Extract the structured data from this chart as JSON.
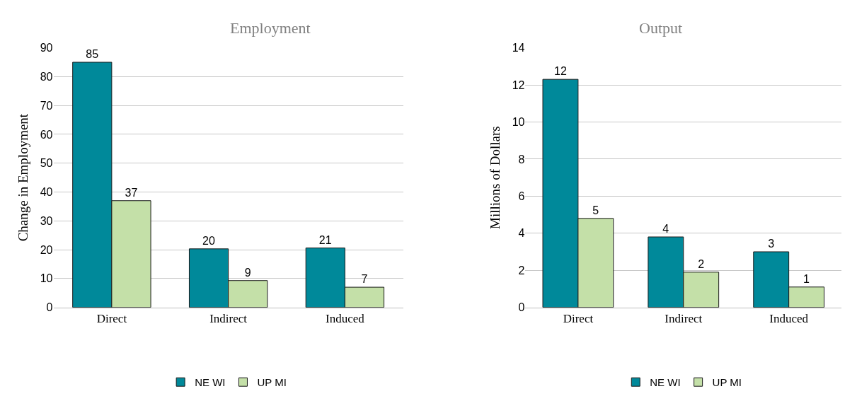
{
  "chart_data": [
    {
      "type": "bar",
      "title": "Employment",
      "ylabel": "Change in Employment",
      "categories": [
        "Direct",
        "Indirect",
        "Induced"
      ],
      "series": [
        {
          "name": "NE WI",
          "color": "#00899a",
          "values": [
            85,
            20.3,
            20.6
          ],
          "value_labels": [
            "85",
            "20",
            "21"
          ]
        },
        {
          "name": "UP MI",
          "color": "#c4e0a8",
          "values": [
            37,
            9.3,
            7
          ],
          "value_labels": [
            "37",
            "9",
            "7"
          ]
        }
      ],
      "ylim": [
        0,
        90
      ],
      "yticks": [
        0,
        10,
        20,
        30,
        40,
        50,
        60,
        70,
        80,
        90
      ],
      "grid": "y",
      "legend": "bottom"
    },
    {
      "type": "bar",
      "title": "Output",
      "ylabel": "Millions of Dollars",
      "categories": [
        "Direct",
        "Indirect",
        "Induced"
      ],
      "series": [
        {
          "name": "NE WI",
          "color": "#00899a",
          "values": [
            12.3,
            3.8,
            3.0
          ],
          "value_labels": [
            "12",
            "4",
            "3"
          ]
        },
        {
          "name": "UP MI",
          "color": "#c4e0a8",
          "values": [
            4.8,
            1.9,
            1.1
          ],
          "value_labels": [
            "5",
            "2",
            "1"
          ]
        }
      ],
      "ylim": [
        0,
        14
      ],
      "yticks": [
        0,
        2,
        4,
        6,
        8,
        10,
        12,
        14
      ],
      "grid": "y",
      "legend": "bottom"
    }
  ]
}
